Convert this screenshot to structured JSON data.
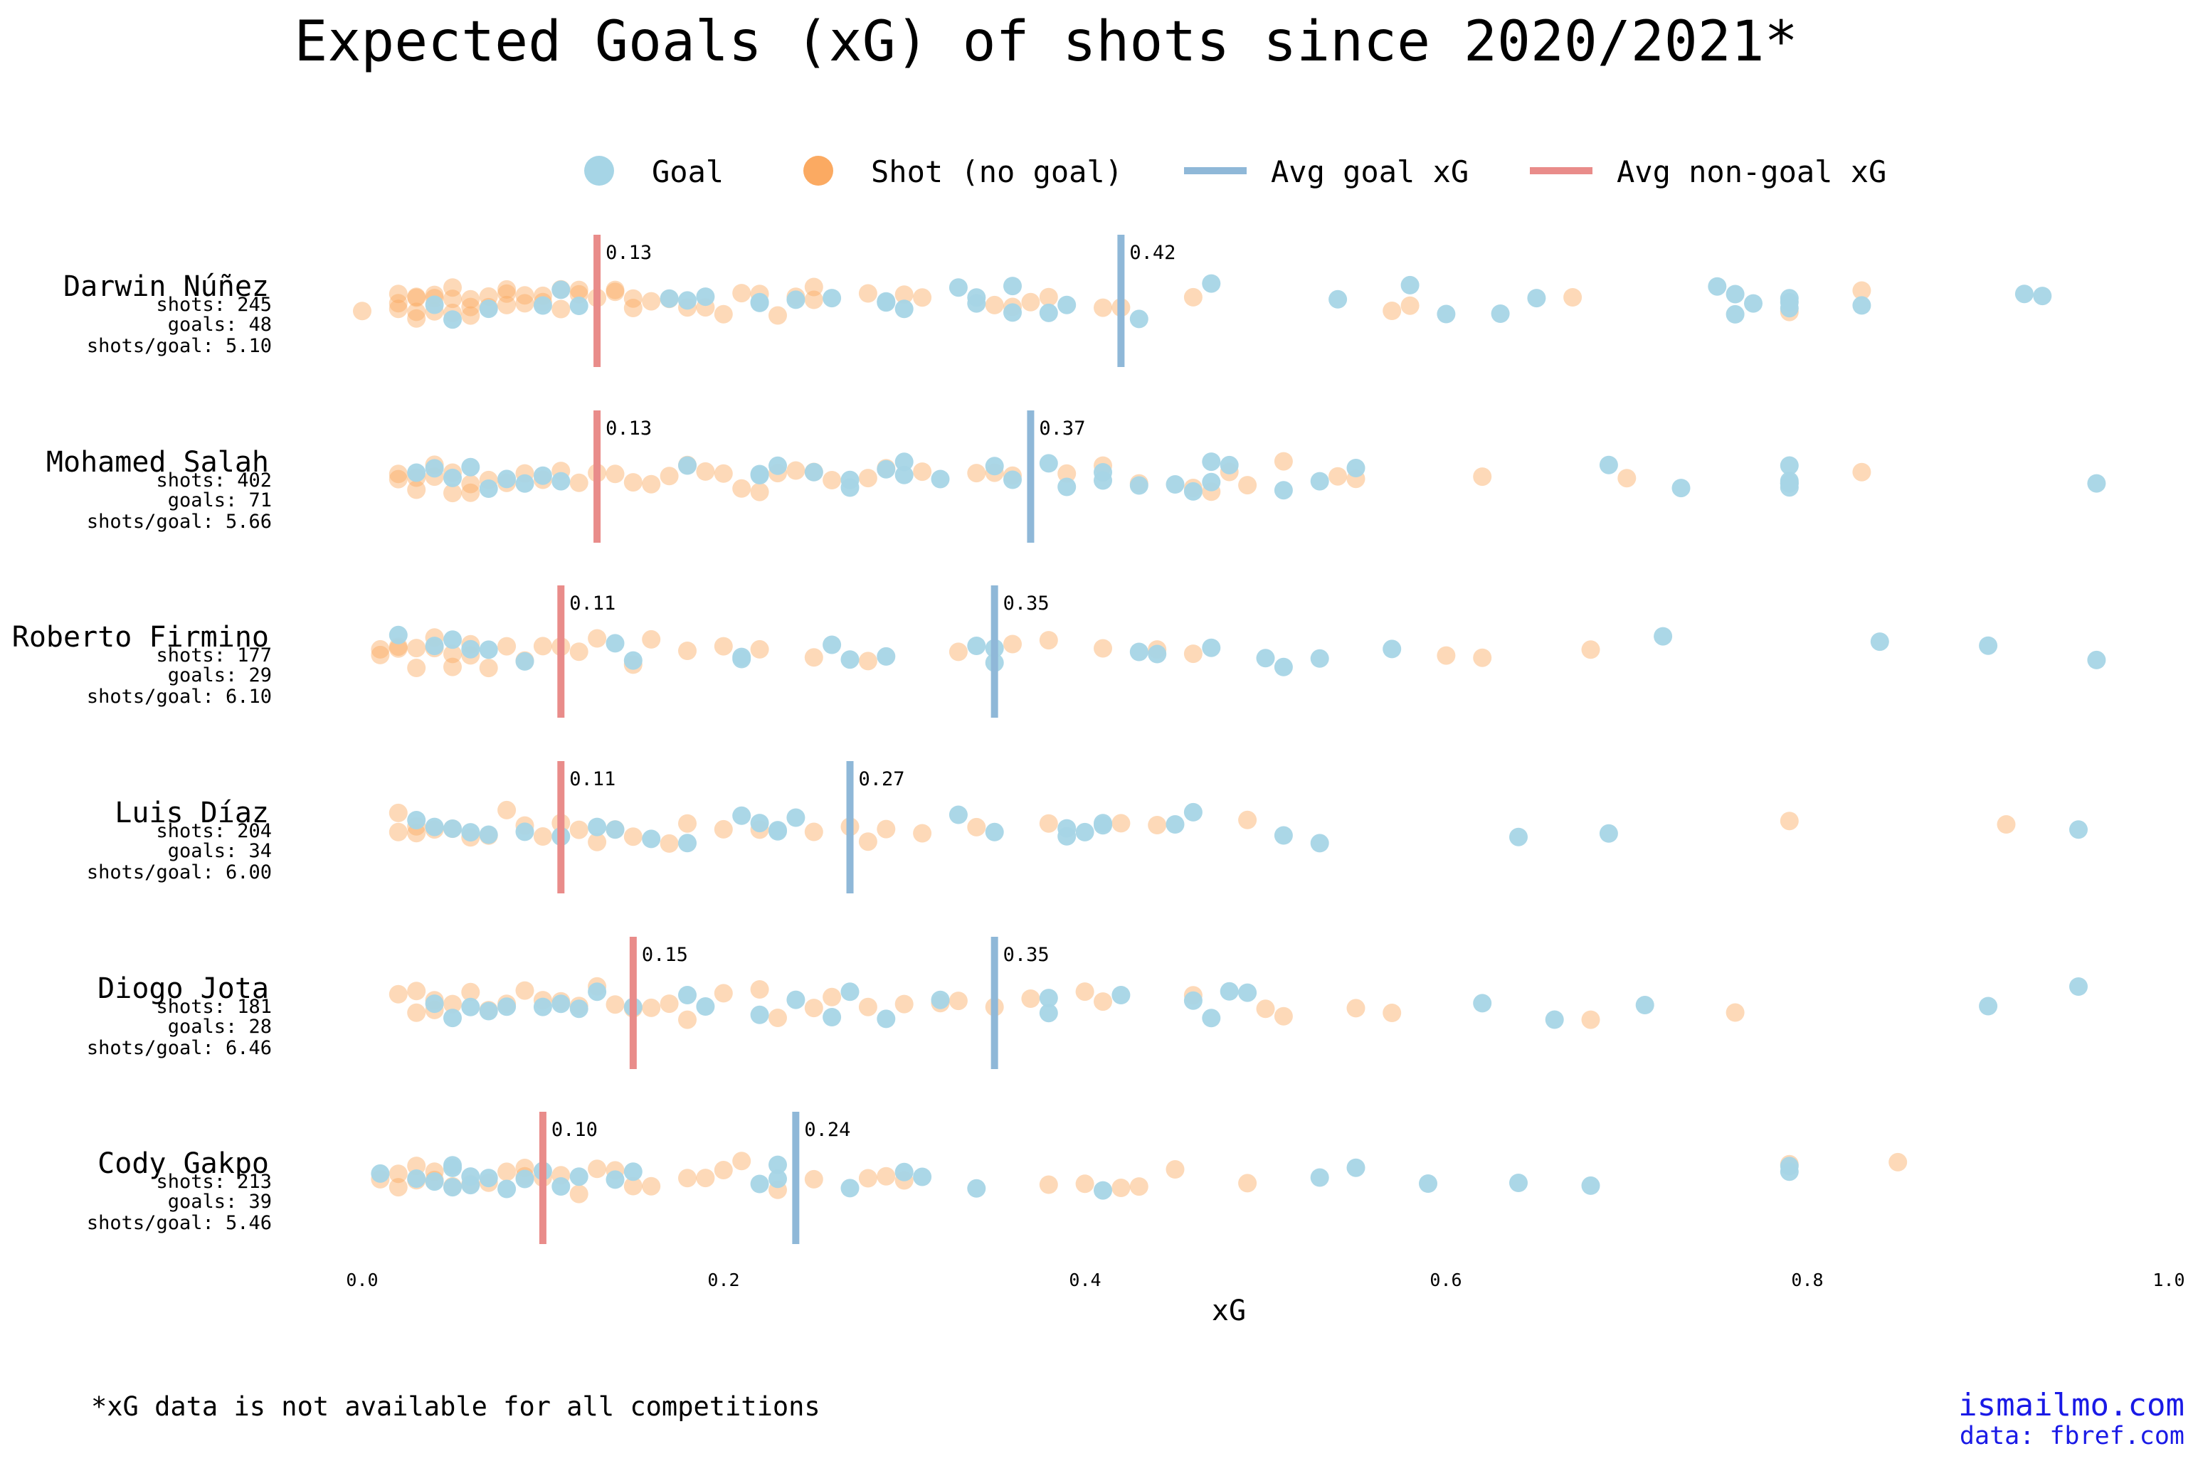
{
  "chart_data": {
    "type": "scatter",
    "title": "Expected Goals (xG) of shots since 2020/2021*",
    "xlabel": "xG",
    "xlim": [
      0.0,
      1.0
    ],
    "x_ticks": [
      "0.0",
      "0.2",
      "0.4",
      "0.6",
      "0.8",
      "1.0"
    ],
    "grid": false,
    "legend_position": "top-center",
    "legend": [
      {
        "label": "Goal",
        "kind": "marker",
        "color": "#a6d5e6"
      },
      {
        "label": "Shot (no goal)",
        "kind": "marker",
        "color": "#fbaa62"
      },
      {
        "label": "Avg goal xG",
        "kind": "line",
        "color": "#8fb8d8"
      },
      {
        "label": "Avg non-goal xG",
        "kind": "line",
        "color": "#e98c8a"
      }
    ],
    "players": [
      {
        "name": "Darwin Núñez",
        "shots_text": "shots: 245",
        "goals_text": "goals: 48",
        "ratio_text": "shots/goal: 5.10",
        "avg_goal_xg": 0.42,
        "avg_goal_label": "0.42",
        "avg_nongoal_xg": 0.13,
        "avg_nongoal_label": "0.13",
        "goal_xg": [
          0.04,
          0.05,
          0.07,
          0.1,
          0.11,
          0.12,
          0.17,
          0.18,
          0.19,
          0.22,
          0.22,
          0.24,
          0.26,
          0.29,
          0.29,
          0.3,
          0.33,
          0.34,
          0.34,
          0.36,
          0.36,
          0.38,
          0.39,
          0.43,
          0.47,
          0.54,
          0.58,
          0.6,
          0.63,
          0.65,
          0.75,
          0.76,
          0.76,
          0.77,
          0.79,
          0.79,
          0.79,
          0.83,
          0.92,
          0.93
        ],
        "nongoal_xg": [
          0.0,
          0.02,
          0.02,
          0.02,
          0.03,
          0.03,
          0.03,
          0.03,
          0.04,
          0.04,
          0.04,
          0.05,
          0.05,
          0.05,
          0.06,
          0.06,
          0.06,
          0.07,
          0.07,
          0.08,
          0.08,
          0.08,
          0.09,
          0.09,
          0.1,
          0.1,
          0.11,
          0.11,
          0.12,
          0.12,
          0.13,
          0.14,
          0.14,
          0.15,
          0.15,
          0.16,
          0.17,
          0.18,
          0.19,
          0.2,
          0.21,
          0.22,
          0.23,
          0.24,
          0.25,
          0.25,
          0.28,
          0.3,
          0.31,
          0.35,
          0.36,
          0.37,
          0.38,
          0.41,
          0.42,
          0.46,
          0.57,
          0.58,
          0.67,
          0.79,
          0.83
        ]
      },
      {
        "name": "Mohamed Salah",
        "shots_text": "shots: 402",
        "goals_text": "goals: 71",
        "ratio_text": "shots/goal: 5.66",
        "avg_goal_xg": 0.37,
        "avg_goal_label": "0.37",
        "avg_nongoal_xg": 0.13,
        "avg_nongoal_label": "0.13",
        "goal_xg": [
          0.03,
          0.04,
          0.05,
          0.06,
          0.07,
          0.08,
          0.09,
          0.1,
          0.11,
          0.18,
          0.22,
          0.22,
          0.23,
          0.25,
          0.27,
          0.27,
          0.29,
          0.3,
          0.3,
          0.32,
          0.35,
          0.36,
          0.38,
          0.39,
          0.41,
          0.41,
          0.43,
          0.45,
          0.46,
          0.47,
          0.47,
          0.48,
          0.51,
          0.53,
          0.55,
          0.69,
          0.73,
          0.79,
          0.79,
          0.79,
          0.79,
          0.79,
          0.96
        ],
        "nongoal_xg": [
          0.02,
          0.02,
          0.03,
          0.03,
          0.04,
          0.04,
          0.05,
          0.05,
          0.06,
          0.06,
          0.07,
          0.08,
          0.09,
          0.1,
          0.11,
          0.12,
          0.13,
          0.14,
          0.15,
          0.16,
          0.17,
          0.18,
          0.19,
          0.2,
          0.21,
          0.22,
          0.23,
          0.24,
          0.25,
          0.26,
          0.28,
          0.29,
          0.31,
          0.34,
          0.35,
          0.36,
          0.39,
          0.41,
          0.43,
          0.46,
          0.47,
          0.48,
          0.49,
          0.51,
          0.54,
          0.55,
          0.62,
          0.7,
          0.83
        ]
      },
      {
        "name": "Roberto Firmino",
        "shots_text": "shots: 177",
        "goals_text": "goals: 29",
        "ratio_text": "shots/goal: 6.10",
        "avg_goal_xg": 0.35,
        "avg_goal_label": "0.35",
        "avg_nongoal_xg": 0.11,
        "avg_nongoal_label": "0.11",
        "goal_xg": [
          0.02,
          0.04,
          0.05,
          0.06,
          0.07,
          0.09,
          0.14,
          0.15,
          0.21,
          0.21,
          0.26,
          0.27,
          0.29,
          0.34,
          0.35,
          0.35,
          0.43,
          0.44,
          0.47,
          0.5,
          0.51,
          0.53,
          0.57,
          0.72,
          0.84,
          0.9,
          0.96
        ],
        "nongoal_xg": [
          0.01,
          0.01,
          0.02,
          0.02,
          0.03,
          0.03,
          0.04,
          0.04,
          0.05,
          0.05,
          0.06,
          0.06,
          0.07,
          0.08,
          0.09,
          0.1,
          0.11,
          0.12,
          0.13,
          0.15,
          0.16,
          0.18,
          0.2,
          0.22,
          0.25,
          0.28,
          0.33,
          0.36,
          0.38,
          0.41,
          0.44,
          0.46,
          0.6,
          0.62,
          0.68
        ]
      },
      {
        "name": "Luis Díaz",
        "shots_text": "shots: 204",
        "goals_text": "goals: 34",
        "ratio_text": "shots/goal: 6.00",
        "avg_goal_xg": 0.27,
        "avg_goal_label": "0.27",
        "avg_nongoal_xg": 0.11,
        "avg_nongoal_label": "0.11",
        "goal_xg": [
          0.03,
          0.04,
          0.05,
          0.06,
          0.07,
          0.09,
          0.11,
          0.13,
          0.14,
          0.16,
          0.18,
          0.21,
          0.22,
          0.23,
          0.23,
          0.24,
          0.33,
          0.35,
          0.39,
          0.39,
          0.4,
          0.41,
          0.41,
          0.45,
          0.46,
          0.51,
          0.53,
          0.64,
          0.69,
          0.95
        ],
        "nongoal_xg": [
          0.02,
          0.02,
          0.03,
          0.03,
          0.04,
          0.05,
          0.06,
          0.07,
          0.08,
          0.09,
          0.1,
          0.11,
          0.12,
          0.13,
          0.14,
          0.15,
          0.17,
          0.18,
          0.2,
          0.22,
          0.25,
          0.27,
          0.28,
          0.29,
          0.31,
          0.34,
          0.38,
          0.42,
          0.44,
          0.49,
          0.79,
          0.91
        ]
      },
      {
        "name": "Diogo Jota",
        "shots_text": "shots: 181",
        "goals_text": "goals: 28",
        "ratio_text": "shots/goal: 6.46",
        "avg_goal_xg": 0.35,
        "avg_goal_label": "0.35",
        "avg_nongoal_xg": 0.15,
        "avg_nongoal_label": "0.15",
        "goal_xg": [
          0.04,
          0.05,
          0.06,
          0.07,
          0.08,
          0.1,
          0.11,
          0.12,
          0.13,
          0.15,
          0.18,
          0.19,
          0.22,
          0.24,
          0.26,
          0.27,
          0.29,
          0.32,
          0.38,
          0.38,
          0.42,
          0.46,
          0.47,
          0.48,
          0.49,
          0.62,
          0.66,
          0.71,
          0.9,
          0.95
        ],
        "nongoal_xg": [
          0.02,
          0.03,
          0.03,
          0.04,
          0.04,
          0.05,
          0.06,
          0.07,
          0.08,
          0.09,
          0.1,
          0.11,
          0.12,
          0.13,
          0.14,
          0.15,
          0.16,
          0.17,
          0.18,
          0.2,
          0.22,
          0.23,
          0.25,
          0.26,
          0.28,
          0.3,
          0.32,
          0.33,
          0.35,
          0.37,
          0.4,
          0.41,
          0.46,
          0.5,
          0.51,
          0.55,
          0.57,
          0.68,
          0.76
        ]
      },
      {
        "name": "Cody Gakpo",
        "shots_text": "shots: 213",
        "goals_text": "goals: 39",
        "ratio_text": "shots/goal: 5.46",
        "avg_goal_xg": 0.24,
        "avg_goal_label": "0.24",
        "avg_nongoal_xg": 0.1,
        "avg_nongoal_label": "0.10",
        "goal_xg": [
          0.01,
          0.03,
          0.04,
          0.05,
          0.05,
          0.05,
          0.06,
          0.06,
          0.07,
          0.08,
          0.09,
          0.1,
          0.11,
          0.12,
          0.14,
          0.15,
          0.22,
          0.23,
          0.23,
          0.27,
          0.3,
          0.31,
          0.34,
          0.41,
          0.53,
          0.55,
          0.59,
          0.64,
          0.68,
          0.79,
          0.79
        ],
        "nongoal_xg": [
          0.01,
          0.02,
          0.02,
          0.03,
          0.03,
          0.04,
          0.04,
          0.05,
          0.06,
          0.07,
          0.08,
          0.09,
          0.09,
          0.1,
          0.11,
          0.12,
          0.13,
          0.14,
          0.15,
          0.16,
          0.18,
          0.19,
          0.2,
          0.21,
          0.23,
          0.25,
          0.28,
          0.29,
          0.3,
          0.38,
          0.4,
          0.42,
          0.43,
          0.45,
          0.49,
          0.79,
          0.85
        ]
      }
    ]
  },
  "footnote": "*xG data is not available for all competitions",
  "credit": {
    "site": "ismailmo.com",
    "data": "data: fbref.com"
  }
}
